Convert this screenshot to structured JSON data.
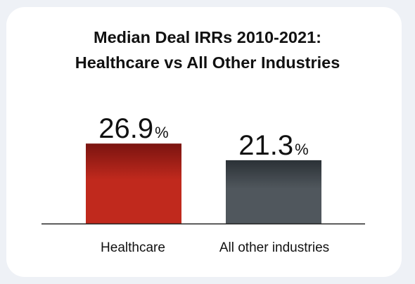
{
  "chart_data": {
    "type": "bar",
    "title_line1": "Median Deal IRRs 2010-2021:",
    "title_line2": "Healthcare vs All Other Industries",
    "categories": [
      "Healthcare",
      "All other industries"
    ],
    "values": [
      26.9,
      21.3
    ],
    "value_labels": [
      "26.9",
      "21.3"
    ],
    "unit": "%",
    "colors": {
      "Healthcare": [
        "#7a1410",
        "#c0291d"
      ],
      "All other industries": [
        "#2b3136",
        "#50575d"
      ]
    },
    "axis_color": "#222222",
    "grid": false
  }
}
